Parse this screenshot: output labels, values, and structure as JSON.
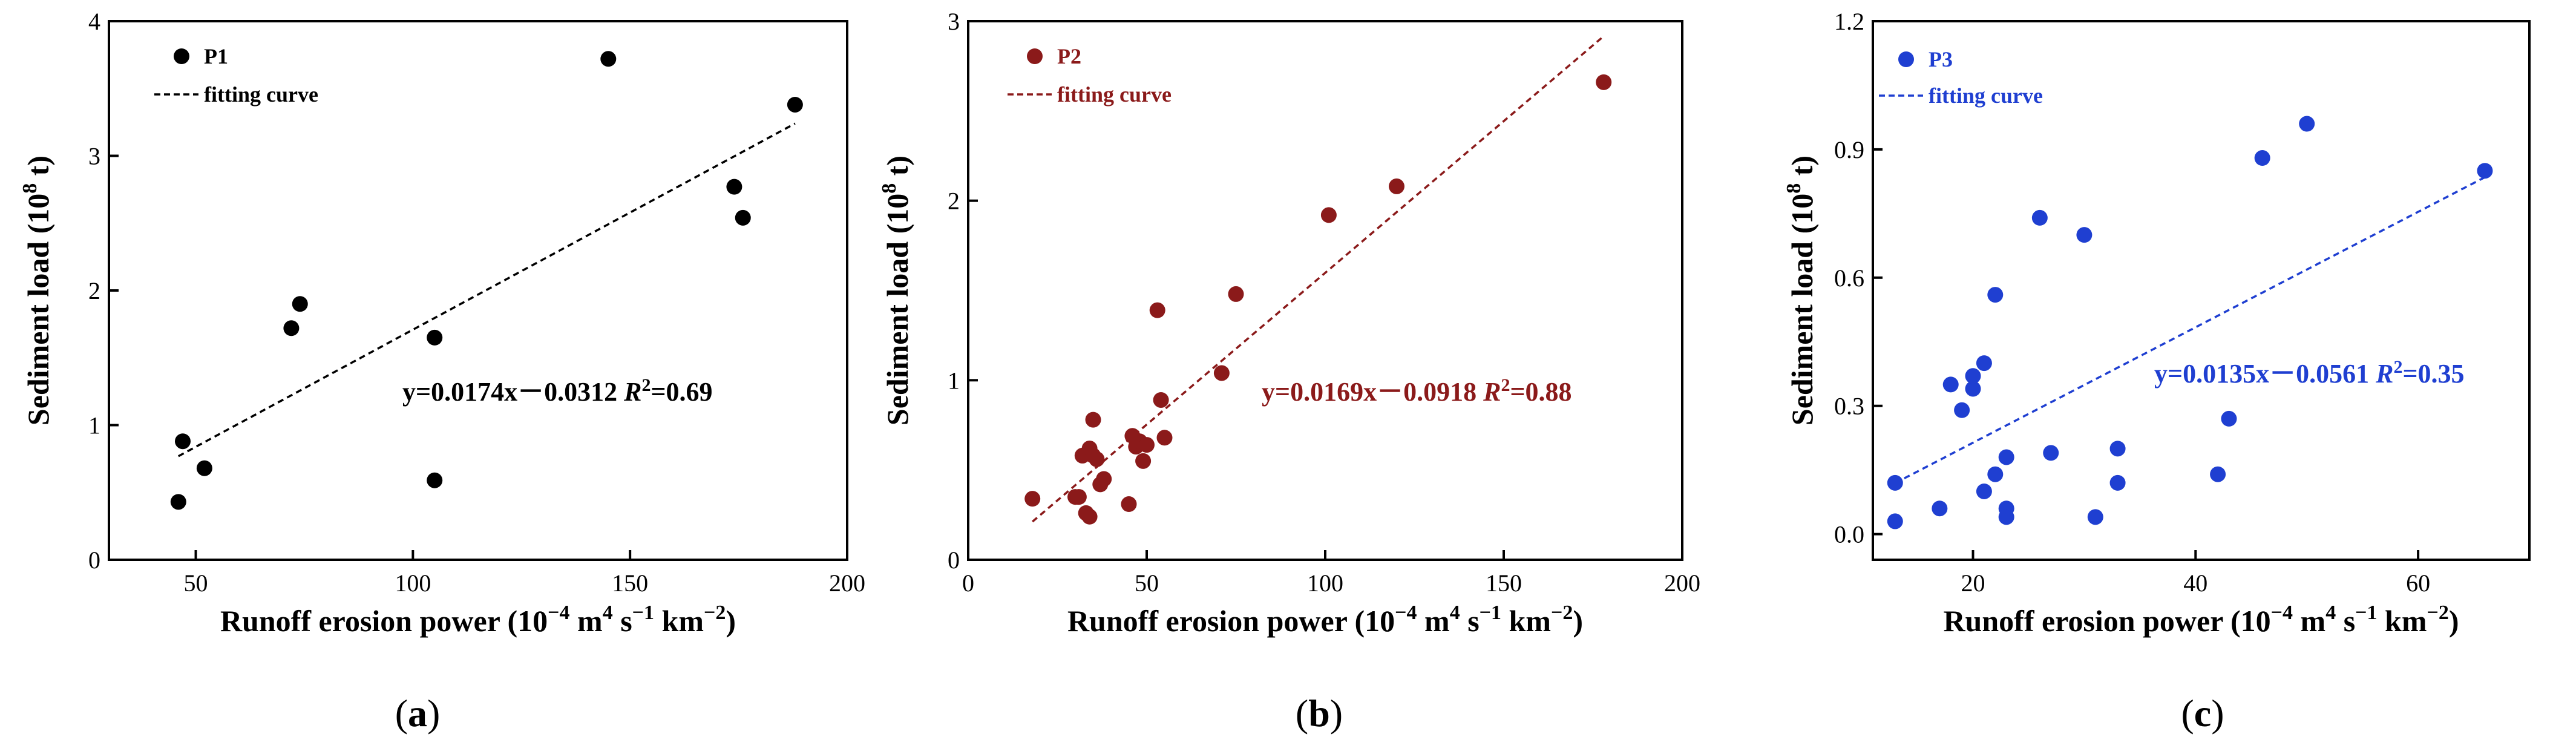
{
  "chart_data": [
    {
      "type": "scatter",
      "panel_label": "(a)",
      "xlabel": "Runoff erosion power (10",
      "xlabel_sup1": "−4",
      "xlabel_mid": " m",
      "xlabel_sup2": "4",
      "xlabel_mid2": " s",
      "xlabel_sup3": "−1",
      "xlabel_mid3": " km",
      "xlabel_sup4": "−2",
      "xlabel_end": ")",
      "ylabel": "Sediment load (10",
      "ylabel_sup": "8",
      "ylabel_end": " t)",
      "xlim": [
        30,
        200
      ],
      "ylim": [
        0,
        4
      ],
      "xticks": [
        50,
        100,
        150,
        200
      ],
      "yticks": [
        0,
        1,
        2,
        3,
        4
      ],
      "xtick_labels": [
        "50",
        "100",
        "150",
        "200"
      ],
      "ytick_labels": [
        "0",
        "1",
        "2",
        "3",
        "4"
      ],
      "color": "#000000",
      "series_name": "P1",
      "fit_name": "fitting curve",
      "equation": "y=0.0174x－0.0312",
      "r2_label": "R",
      "r2_sup": "2",
      "r2_value": "=0.69",
      "fit": {
        "slope": 0.0174,
        "intercept": -0.0312,
        "x_range": [
          46,
          188
        ]
      },
      "points": [
        {
          "x": 46,
          "y": 0.43
        },
        {
          "x": 47,
          "y": 0.88
        },
        {
          "x": 52,
          "y": 0.68
        },
        {
          "x": 72,
          "y": 1.72
        },
        {
          "x": 74,
          "y": 1.9
        },
        {
          "x": 105,
          "y": 1.65
        },
        {
          "x": 105,
          "y": 0.59
        },
        {
          "x": 145,
          "y": 3.72
        },
        {
          "x": 174,
          "y": 2.77
        },
        {
          "x": 176,
          "y": 2.54
        },
        {
          "x": 188,
          "y": 3.38
        }
      ]
    },
    {
      "type": "scatter",
      "panel_label": "(b)",
      "xlabel": "Runoff erosion power (10",
      "xlabel_sup1": "−4",
      "xlabel_mid": " m",
      "xlabel_sup2": "4",
      "xlabel_mid2": " s",
      "xlabel_sup3": "−1",
      "xlabel_mid3": " km",
      "xlabel_sup4": "−2",
      "xlabel_end": ")",
      "ylabel": "Sediment load (10",
      "ylabel_sup": "8",
      "ylabel_end": " t)",
      "xlim": [
        0,
        200
      ],
      "ylim": [
        0,
        3
      ],
      "xticks": [
        0,
        50,
        100,
        150,
        200
      ],
      "yticks": [
        0,
        1,
        2,
        3
      ],
      "xtick_labels": [
        "0",
        "50",
        "100",
        "150",
        "200"
      ],
      "ytick_labels": [
        "0",
        "1",
        "2",
        "3"
      ],
      "color": "#8b1a1a",
      "series_name": "P2",
      "fit_name": "fitting curve",
      "equation": "y=0.0169x－0.0918",
      "r2_label": "R",
      "r2_sup": "2",
      "r2_value": "=0.88",
      "fit": {
        "slope": 0.0169,
        "intercept": -0.0918,
        "x_range": [
          18,
          178
        ]
      },
      "points": [
        {
          "x": 18,
          "y": 0.34
        },
        {
          "x": 30,
          "y": 0.35
        },
        {
          "x": 31,
          "y": 0.35
        },
        {
          "x": 32,
          "y": 0.58
        },
        {
          "x": 33,
          "y": 0.26
        },
        {
          "x": 34,
          "y": 0.24
        },
        {
          "x": 34,
          "y": 0.62
        },
        {
          "x": 35,
          "y": 0.78
        },
        {
          "x": 35,
          "y": 0.58
        },
        {
          "x": 36,
          "y": 0.56
        },
        {
          "x": 37,
          "y": 0.42
        },
        {
          "x": 38,
          "y": 0.45
        },
        {
          "x": 45,
          "y": 0.31
        },
        {
          "x": 46,
          "y": 0.69
        },
        {
          "x": 47,
          "y": 0.63
        },
        {
          "x": 48,
          "y": 0.66
        },
        {
          "x": 49,
          "y": 0.55
        },
        {
          "x": 50,
          "y": 0.64
        },
        {
          "x": 53,
          "y": 1.39
        },
        {
          "x": 54,
          "y": 0.89
        },
        {
          "x": 55,
          "y": 0.68
        },
        {
          "x": 71,
          "y": 1.04
        },
        {
          "x": 75,
          "y": 1.48
        },
        {
          "x": 101,
          "y": 1.92
        },
        {
          "x": 120,
          "y": 2.08
        },
        {
          "x": 178,
          "y": 2.66
        }
      ]
    },
    {
      "type": "scatter",
      "panel_label": "(c)",
      "xlabel": "Runoff erosion power (10",
      "xlabel_sup1": "−4",
      "xlabel_mid": " m",
      "xlabel_sup2": "4",
      "xlabel_mid2": " s",
      "xlabel_sup3": "−1",
      "xlabel_mid3": " km",
      "xlabel_sup4": "−2",
      "xlabel_end": ")",
      "ylabel": "Sediment load (10",
      "ylabel_sup": "8",
      "ylabel_end": " t)",
      "xlim": [
        11,
        70
      ],
      "ylim": [
        -0.06,
        1.2
      ],
      "xticks": [
        20,
        40,
        60
      ],
      "yticks": [
        0.0,
        0.3,
        0.6,
        0.9,
        1.2
      ],
      "xtick_labels": [
        "20",
        "40",
        "60"
      ],
      "ytick_labels": [
        "0.0",
        "0.3",
        "0.6",
        "0.9",
        "1.2"
      ],
      "color": "#1f3fd1",
      "series_name": "P3",
      "fit_name": "fitting curve",
      "equation": "y=0.0135x－0.0561",
      "r2_label": "R",
      "r2_sup": "2",
      "r2_value": "=0.35",
      "fit": {
        "slope": 0.0135,
        "intercept": -0.0561,
        "x_range": [
          13,
          66
        ]
      },
      "points": [
        {
          "x": 13,
          "y": 0.12
        },
        {
          "x": 13,
          "y": 0.03
        },
        {
          "x": 17,
          "y": 0.06
        },
        {
          "x": 18,
          "y": 0.35
        },
        {
          "x": 19,
          "y": 0.29
        },
        {
          "x": 20,
          "y": 0.34
        },
        {
          "x": 20,
          "y": 0.37
        },
        {
          "x": 21,
          "y": 0.4
        },
        {
          "x": 21,
          "y": 0.1
        },
        {
          "x": 22,
          "y": 0.14
        },
        {
          "x": 22,
          "y": 0.56
        },
        {
          "x": 23,
          "y": 0.18
        },
        {
          "x": 23,
          "y": 0.06
        },
        {
          "x": 23,
          "y": 0.04
        },
        {
          "x": 26,
          "y": 0.74
        },
        {
          "x": 27,
          "y": 0.19
        },
        {
          "x": 30,
          "y": 0.7
        },
        {
          "x": 31,
          "y": 0.04
        },
        {
          "x": 33,
          "y": 0.12
        },
        {
          "x": 33,
          "y": 0.2
        },
        {
          "x": 42,
          "y": 0.14
        },
        {
          "x": 43,
          "y": 0.27
        },
        {
          "x": 46,
          "y": 0.88
        },
        {
          "x": 50,
          "y": 0.96
        },
        {
          "x": 66,
          "y": 0.85
        }
      ]
    }
  ]
}
